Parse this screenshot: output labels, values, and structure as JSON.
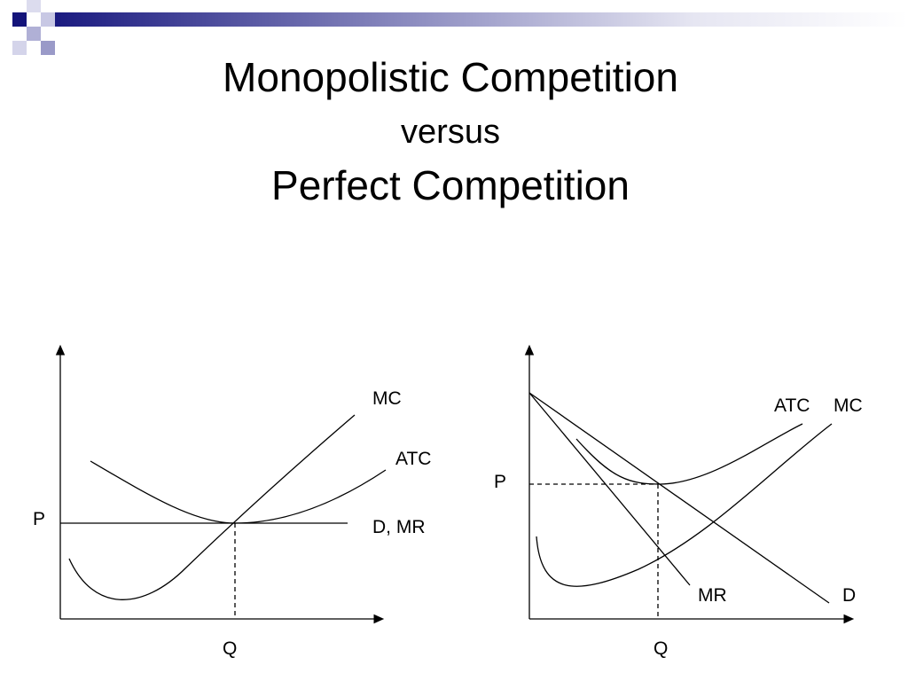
{
  "title": {
    "line1": "Monopolistic Competition",
    "line2": "versus",
    "line3": "Perfect Competition"
  },
  "diagrams": [
    {
      "labels": {
        "mc": "MC",
        "atc": "ATC",
        "demand": "D, MR",
        "price": "P",
        "quantity": "Q"
      }
    },
    {
      "labels": {
        "atc": "ATC",
        "mc": "MC",
        "price": "P",
        "mr": "MR",
        "demand": "D",
        "quantity": "Q"
      }
    }
  ]
}
